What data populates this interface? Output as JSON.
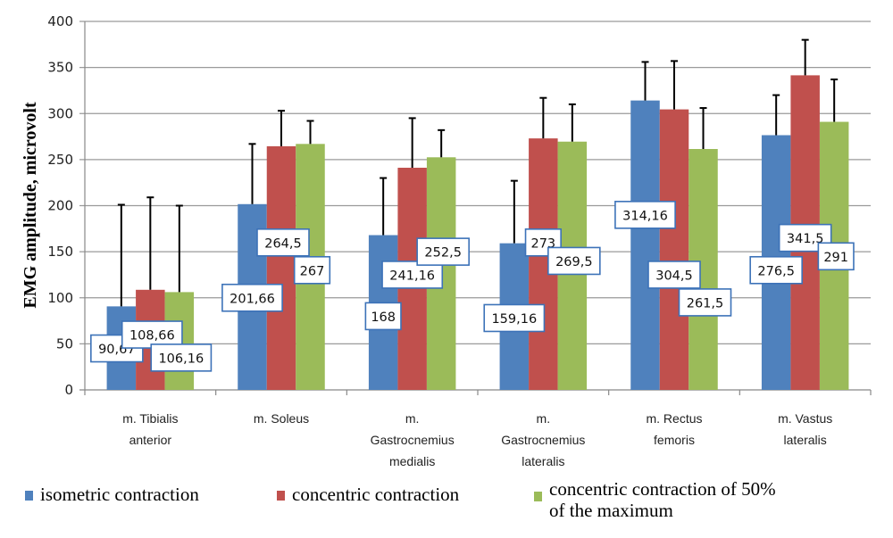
{
  "chart_data": {
    "type": "bar",
    "title": "",
    "xlabel": "",
    "ylabel": "EMG amplitude, microvolt",
    "ylim": [
      0,
      400
    ],
    "yticks": [
      0,
      50,
      100,
      150,
      200,
      250,
      300,
      350,
      400
    ],
    "ytick_labels": [
      "0",
      "50",
      "100",
      "150",
      "200",
      "250",
      "300",
      "350",
      "400"
    ],
    "grid": true,
    "legend_position": "bottom",
    "categories": [
      [
        "m. Tibialis",
        "anterior"
      ],
      [
        "m. Soleus"
      ],
      [
        "m.",
        "Gastrocnemius",
        "medialis"
      ],
      [
        "m.",
        "Gastrocnemius",
        "lateralis"
      ],
      [
        "m. Rectus",
        "femoris"
      ],
      [
        "m. Vastus",
        "lateralis"
      ]
    ],
    "series": [
      {
        "name": "isometric contraction",
        "color": "#4f81bd",
        "values": [
          90.67,
          201.66,
          168,
          159.16,
          314.16,
          276.5
        ],
        "value_labels": [
          "90,67",
          "201,66",
          "168",
          "159,16",
          "314,16",
          "276,5"
        ],
        "error_upper": [
          201,
          267,
          230,
          227,
          356,
          320
        ]
      },
      {
        "name": "concentric contraction",
        "color": "#c0504d",
        "values": [
          108.66,
          264.5,
          241.16,
          273,
          304.5,
          341.5
        ],
        "value_labels": [
          "108,66",
          "264,5",
          "241,16",
          "273",
          "304,5",
          "341,5"
        ],
        "error_upper": [
          209,
          303,
          295,
          317,
          357,
          380
        ]
      },
      {
        "name": "concentric contraction of 50% of the maximum",
        "color": "#9bbb59",
        "values": [
          106.16,
          267,
          252.5,
          269.5,
          261.5,
          291
        ],
        "value_labels": [
          "106,16",
          "267",
          "252,5",
          "269,5",
          "261,5",
          "291"
        ],
        "error_upper": [
          200,
          292,
          282,
          310,
          306,
          337
        ]
      }
    ],
    "label_positions_value": [
      [
        [
          45,
          60,
          35
        ],
        [
          100,
          160,
          130
        ],
        [
          80,
          125,
          150
        ],
        [
          78,
          160,
          140
        ],
        [
          190,
          125,
          95
        ],
        [
          130,
          165,
          145
        ]
      ]
    ]
  },
  "legend": {
    "items": [
      {
        "label": "isometric contraction",
        "color": "#4f81bd"
      },
      {
        "label": "concentric contraction",
        "color": "#c0504d"
      },
      {
        "label_line1": "concentric contraction of 50%",
        "label_line2": "of the maximum",
        "color": "#9bbb59"
      }
    ]
  }
}
